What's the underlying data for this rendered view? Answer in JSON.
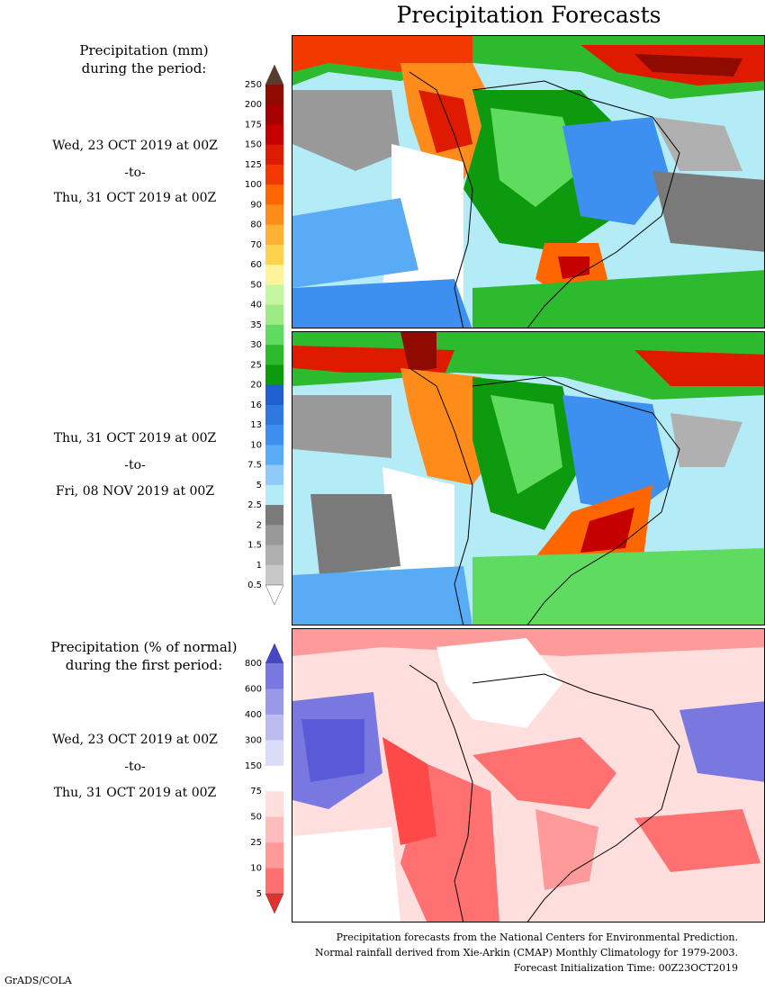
{
  "title": "Precipitation Forecasts",
  "precip_legend": {
    "heading_line1": "Precipitation (mm)",
    "heading_line2": "during the period:",
    "ticks": [
      "250",
      "200",
      "175",
      "150",
      "125",
      "100",
      "90",
      "80",
      "70",
      "60",
      "50",
      "40",
      "35",
      "30",
      "25",
      "20",
      "16",
      "13",
      "10",
      "7.5",
      "5",
      "2.5",
      "2",
      "1.5",
      "1",
      "0.5"
    ],
    "colors": [
      "#7a1a0e",
      "#8f0a00",
      "#a60000",
      "#c40000",
      "#de1a00",
      "#f23a00",
      "#ff6600",
      "#ff8c1a",
      "#ffb133",
      "#ffd24d",
      "#fff49a",
      "#c6f5a0",
      "#9eea84",
      "#5fdc5f",
      "#2eba2e",
      "#0e9a0e",
      "#1f5fd0",
      "#2e78e0",
      "#3d8ff0",
      "#5aabf5",
      "#8fcaf8",
      "#b3ecf7",
      "#7a7a7a",
      "#999999",
      "#b0b0b0",
      "#c8c8c8"
    ]
  },
  "period1": {
    "start": "Wed, 23 OCT 2019 at 00Z",
    "sep": "-to-",
    "end": "Thu, 31 OCT 2019 at 00Z"
  },
  "period2": {
    "start": "Thu, 31 OCT 2019 at 00Z",
    "sep": "-to-",
    "end": "Fri, 08 NOV 2019 at 00Z"
  },
  "pct_legend": {
    "heading_line1": "Precipitation (% of normal)",
    "heading_line2": "during the first period:",
    "ticks": [
      "800",
      "600",
      "400",
      "300",
      "150",
      "75",
      "50",
      "25",
      "10",
      "5"
    ],
    "colors": [
      "#5a5ad8",
      "#7878e0",
      "#9a9ae8",
      "#bcbcf0",
      "#dcdcf8",
      "#ffffff",
      "#ffdede",
      "#ffbcbc",
      "#ff9a9a",
      "#ff7070",
      "#ff4848"
    ]
  },
  "period3": {
    "start": "Wed, 23 OCT 2019 at 00Z",
    "sep": "-to-",
    "end": "Thu, 31 OCT 2019 at 00Z"
  },
  "footer": {
    "line1": "Precipitation forecasts from the National Centers for Environmental Prediction.",
    "line2": "Normal rainfall derived from Xie-Arkin (CMAP) Monthly Climatology for 1979-2003.",
    "line3": "Forecast Initialization Time: 00Z23OCT2019"
  },
  "credit": "GrADS/COLA"
}
